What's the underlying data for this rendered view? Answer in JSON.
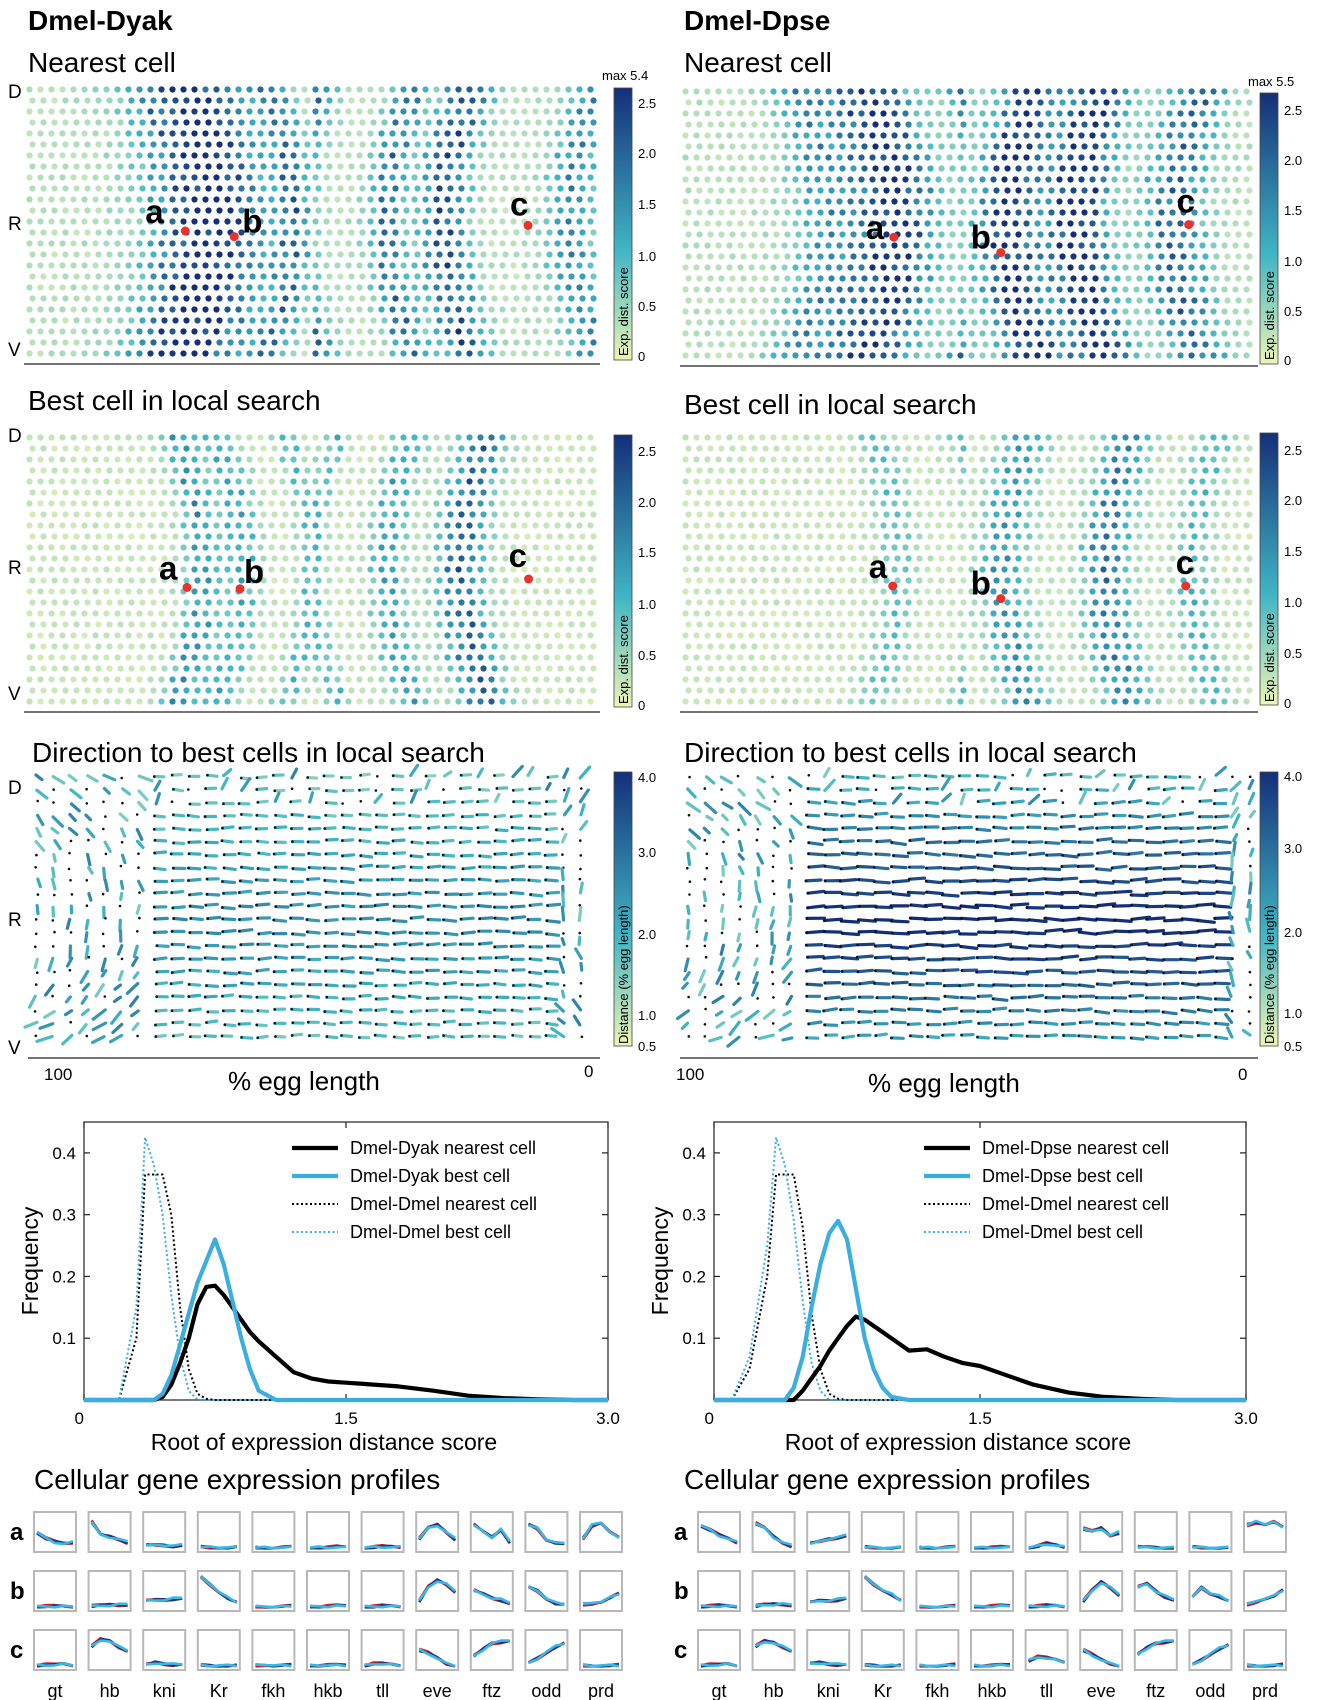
{
  "columns": [
    {
      "title": "Dmel-Dyak"
    },
    {
      "title": "Dmel-Dpse"
    }
  ],
  "panel_titles": {
    "nearest": "Nearest cell",
    "best": "Best cell in local search",
    "direction": "Direction to best cells in local search",
    "profiles": "Cellular gene expression profiles"
  },
  "dv_labels": [
    "D",
    "R",
    "V"
  ],
  "point_labels": [
    "a",
    "b",
    "c"
  ],
  "colorbar_score": {
    "label": "Exp. dist. score",
    "ticks": [
      "0",
      "0.5",
      "1.0",
      "1.5",
      "2.0",
      "2.5"
    ],
    "max_labels": [
      "max 5.4",
      "max 5.5"
    ]
  },
  "colorbar_distance": {
    "label": "Distance (% egg length)",
    "ticks": [
      "0.5",
      "1.0",
      "2.0",
      "3.0",
      "4.0"
    ]
  },
  "egg_axis": {
    "label": "% egg length",
    "left": "100",
    "right": "0"
  },
  "colors": {
    "nearest_line": "#000000",
    "best_line": "#3aaee0",
    "red_marker": "#e8322a",
    "profile_red": "#c8202a",
    "profile_navy": "#26307a",
    "profile_cyan": "#38b8e6",
    "scale_low": "#edf4b6",
    "scale_mid": "#41b6c4",
    "scale_high": "#142f7a"
  },
  "chart_data": [
    {
      "type": "line",
      "panel": "Dmel-Dyak",
      "xlabel": "Root of expression distance score",
      "ylabel": "Frequency",
      "xlim": [
        0,
        3.0
      ],
      "ylim": [
        0,
        0.45
      ],
      "xticks": [
        "0",
        "1.5",
        "3.0"
      ],
      "yticks": [
        "0.1",
        "0.2",
        "0.3",
        "0.4"
      ],
      "legend_position": "top-right",
      "x": [
        0,
        0.1,
        0.2,
        0.3,
        0.35,
        0.4,
        0.45,
        0.5,
        0.55,
        0.6,
        0.65,
        0.7,
        0.75,
        0.8,
        0.85,
        0.9,
        0.95,
        1.0,
        1.1,
        1.2,
        1.3,
        1.4,
        1.5,
        1.6,
        1.8,
        2.0,
        2.2,
        2.4,
        2.6,
        2.8,
        3.0
      ],
      "series": [
        {
          "name": "Dmel-Dyak nearest cell",
          "style": "solid-black",
          "values": [
            0,
            0,
            0,
            0,
            0,
            0,
            0.005,
            0.025,
            0.06,
            0.1,
            0.155,
            0.183,
            0.185,
            0.17,
            0.15,
            0.13,
            0.11,
            0.095,
            0.07,
            0.045,
            0.035,
            0.03,
            0.028,
            0.026,
            0.022,
            0.015,
            0.007,
            0.003,
            0.001,
            0,
            0
          ]
        },
        {
          "name": "Dmel-Dyak best cell",
          "style": "solid-cyan",
          "values": [
            0,
            0,
            0,
            0,
            0,
            0,
            0.01,
            0.04,
            0.09,
            0.14,
            0.19,
            0.225,
            0.26,
            0.22,
            0.16,
            0.1,
            0.05,
            0.015,
            0,
            0,
            0,
            0,
            0,
            0,
            0,
            0,
            0,
            0,
            0,
            0,
            0
          ]
        },
        {
          "name": "Dmel-Dmel nearest cell",
          "style": "dotted-black",
          "values": [
            0,
            0,
            0,
            0.1,
            0.365,
            0.365,
            0.365,
            0.3,
            0.15,
            0.05,
            0.01,
            0.002,
            0,
            0,
            0,
            0,
            0,
            0,
            0,
            0,
            0,
            0,
            0,
            0,
            0,
            0,
            0,
            0,
            0,
            0,
            0
          ]
        },
        {
          "name": "Dmel-Dmel best cell",
          "style": "dotted-cyan",
          "values": [
            0,
            0,
            0,
            0.15,
            0.425,
            0.38,
            0.3,
            0.17,
            0.07,
            0.015,
            0,
            0,
            0,
            0,
            0,
            0,
            0,
            0,
            0,
            0,
            0,
            0,
            0,
            0,
            0,
            0,
            0,
            0,
            0,
            0,
            0
          ]
        }
      ]
    },
    {
      "type": "line",
      "panel": "Dmel-Dpse",
      "xlabel": "Root of expression distance score",
      "ylabel": "Frequency",
      "xlim": [
        0,
        3.0
      ],
      "ylim": [
        0,
        0.45
      ],
      "xticks": [
        "0",
        "1.5",
        "3.0"
      ],
      "yticks": [
        "0.1",
        "0.2",
        "0.3",
        "0.4"
      ],
      "legend_position": "top-right",
      "x": [
        0,
        0.1,
        0.2,
        0.3,
        0.35,
        0.4,
        0.45,
        0.5,
        0.55,
        0.6,
        0.65,
        0.7,
        0.75,
        0.8,
        0.85,
        0.9,
        0.95,
        1.0,
        1.1,
        1.2,
        1.3,
        1.4,
        1.5,
        1.6,
        1.8,
        2.0,
        2.2,
        2.4,
        2.6,
        2.8,
        3.0
      ],
      "series": [
        {
          "name": "Dmel-Dpse nearest cell",
          "style": "solid-black",
          "values": [
            0,
            0,
            0,
            0,
            0,
            0,
            0,
            0.015,
            0.035,
            0.055,
            0.08,
            0.1,
            0.12,
            0.135,
            0.13,
            0.12,
            0.11,
            0.1,
            0.08,
            0.082,
            0.07,
            0.06,
            0.055,
            0.045,
            0.025,
            0.012,
            0.005,
            0.002,
            0,
            0,
            0
          ]
        },
        {
          "name": "Dmel-Dpse best cell",
          "style": "solid-cyan",
          "values": [
            0,
            0,
            0,
            0,
            0,
            0,
            0.02,
            0.07,
            0.15,
            0.22,
            0.27,
            0.29,
            0.26,
            0.18,
            0.1,
            0.05,
            0.02,
            0.005,
            0,
            0,
            0,
            0,
            0,
            0,
            0,
            0,
            0,
            0,
            0,
            0,
            0
          ]
        },
        {
          "name": "Dmel-Dmel nearest cell",
          "style": "dotted-black",
          "values": [
            0,
            0,
            0.05,
            0.2,
            0.365,
            0.365,
            0.365,
            0.28,
            0.14,
            0.05,
            0.01,
            0.002,
            0,
            0,
            0,
            0,
            0,
            0,
            0,
            0,
            0,
            0,
            0,
            0,
            0,
            0,
            0,
            0,
            0,
            0,
            0
          ]
        },
        {
          "name": "Dmel-Dmel best cell",
          "style": "dotted-cyan",
          "values": [
            0,
            0,
            0.07,
            0.25,
            0.425,
            0.38,
            0.29,
            0.16,
            0.06,
            0.015,
            0,
            0,
            0,
            0,
            0,
            0,
            0,
            0,
            0,
            0,
            0,
            0,
            0,
            0,
            0,
            0,
            0,
            0,
            0,
            0,
            0
          ]
        }
      ]
    }
  ],
  "profiles": {
    "rows": [
      "a",
      "b",
      "c"
    ],
    "genes": [
      "gt",
      "hb",
      "kni",
      "Kr",
      "fkh",
      "hkb",
      "tll",
      "eve",
      "ftz",
      "odd",
      "prd"
    ],
    "panels": [
      {
        "a": [
          [
            0.5,
            0.3,
            0.2,
            0.15,
            0.2
          ],
          [
            0.8,
            0.4,
            0.35,
            0.3,
            0.2
          ],
          [
            0.1,
            0.1,
            0.12,
            0.1,
            0.12
          ],
          [
            0.05,
            0.05,
            0.06,
            0.05,
            0.05
          ],
          [
            0.04,
            0.04,
            0.04,
            0.04,
            0.04
          ],
          [
            0.04,
            0.05,
            0.04,
            0.05,
            0.04
          ],
          [
            0.04,
            0.05,
            0.06,
            0.05,
            0.06
          ],
          [
            0.3,
            0.6,
            0.7,
            0.5,
            0.3
          ],
          [
            0.7,
            0.5,
            0.35,
            0.6,
            0.2
          ],
          [
            0.7,
            0.6,
            0.3,
            0.2,
            0.15
          ],
          [
            0.3,
            0.7,
            0.8,
            0.5,
            0.3
          ]
        ],
        "b": [
          [
            0.04,
            0.04,
            0.04,
            0.04,
            0.04
          ],
          [
            0.05,
            0.06,
            0.08,
            0.1,
            0.12
          ],
          [
            0.2,
            0.22,
            0.25,
            0.28,
            0.3
          ],
          [
            0.9,
            0.7,
            0.5,
            0.3,
            0.15
          ],
          [
            0.04,
            0.04,
            0.04,
            0.04,
            0.04
          ],
          [
            0.04,
            0.05,
            0.05,
            0.05,
            0.05
          ],
          [
            0.04,
            0.04,
            0.05,
            0.04,
            0.05
          ],
          [
            0.2,
            0.6,
            0.8,
            0.7,
            0.5
          ],
          [
            0.5,
            0.4,
            0.3,
            0.25,
            0.15
          ],
          [
            0.6,
            0.5,
            0.3,
            0.15,
            0.1
          ],
          [
            0.1,
            0.15,
            0.2,
            0.3,
            0.4
          ]
        ],
        "c": [
          [
            0.05,
            0.06,
            0.05,
            0.08,
            0.06
          ],
          [
            0.6,
            0.8,
            0.75,
            0.6,
            0.5
          ],
          [
            0.05,
            0.12,
            0.1,
            0.08,
            0.1
          ],
          [
            0.04,
            0.04,
            0.05,
            0.04,
            0.04
          ],
          [
            0.05,
            0.08,
            0.05,
            0.04,
            0.04
          ],
          [
            0.04,
            0.06,
            0.05,
            0.04,
            0.04
          ],
          [
            0.05,
            0.1,
            0.08,
            0.06,
            0.05
          ],
          [
            0.5,
            0.4,
            0.25,
            0.1,
            0.05
          ],
          [
            0.3,
            0.5,
            0.7,
            0.75,
            0.8
          ],
          [
            0.1,
            0.25,
            0.45,
            0.6,
            0.7
          ],
          [
            0.04,
            0.05,
            0.05,
            0.04,
            0.04
          ]
        ]
      },
      {
        "a": [
          [
            0.7,
            0.55,
            0.4,
            0.3,
            0.2
          ],
          [
            0.75,
            0.6,
            0.35,
            0.2,
            0.1
          ],
          [
            0.15,
            0.2,
            0.3,
            0.35,
            0.4
          ],
          [
            0.04,
            0.04,
            0.04,
            0.04,
            0.04
          ],
          [
            0.04,
            0.04,
            0.04,
            0.04,
            0.04
          ],
          [
            0.04,
            0.04,
            0.04,
            0.04,
            0.04
          ],
          [
            0.04,
            0.08,
            0.15,
            0.1,
            0.06
          ],
          [
            0.6,
            0.5,
            0.6,
            0.4,
            0.5
          ],
          [
            0.04,
            0.04,
            0.04,
            0.04,
            0.04
          ],
          [
            0.04,
            0.04,
            0.05,
            0.04,
            0.04
          ],
          [
            0.7,
            0.8,
            0.75,
            0.8,
            0.6
          ]
        ],
        "b": [
          [
            0.05,
            0.05,
            0.06,
            0.05,
            0.05
          ],
          [
            0.05,
            0.08,
            0.1,
            0.12,
            0.1
          ],
          [
            0.15,
            0.2,
            0.22,
            0.25,
            0.3
          ],
          [
            0.9,
            0.7,
            0.55,
            0.4,
            0.2
          ],
          [
            0.04,
            0.04,
            0.04,
            0.04,
            0.04
          ],
          [
            0.04,
            0.05,
            0.05,
            0.05,
            0.05
          ],
          [
            0.05,
            0.05,
            0.06,
            0.05,
            0.05
          ],
          [
            0.2,
            0.5,
            0.75,
            0.6,
            0.4
          ],
          [
            0.6,
            0.7,
            0.5,
            0.35,
            0.25
          ],
          [
            0.3,
            0.6,
            0.45,
            0.35,
            0.2
          ],
          [
            0.1,
            0.2,
            0.3,
            0.35,
            0.5
          ]
        ],
        "c": [
          [
            0.05,
            0.06,
            0.05,
            0.08,
            0.05
          ],
          [
            0.6,
            0.75,
            0.7,
            0.6,
            0.5
          ],
          [
            0.08,
            0.12,
            0.1,
            0.08,
            0.1
          ],
          [
            0.04,
            0.05,
            0.04,
            0.04,
            0.04
          ],
          [
            0.04,
            0.05,
            0.04,
            0.04,
            0.05
          ],
          [
            0.04,
            0.05,
            0.04,
            0.04,
            0.05
          ],
          [
            0.2,
            0.3,
            0.25,
            0.2,
            0.15
          ],
          [
            0.5,
            0.35,
            0.2,
            0.1,
            0.05
          ],
          [
            0.35,
            0.55,
            0.7,
            0.75,
            0.8
          ],
          [
            0.05,
            0.2,
            0.4,
            0.55,
            0.65
          ],
          [
            0.04,
            0.05,
            0.05,
            0.04,
            0.05
          ]
        ]
      }
    ]
  }
}
